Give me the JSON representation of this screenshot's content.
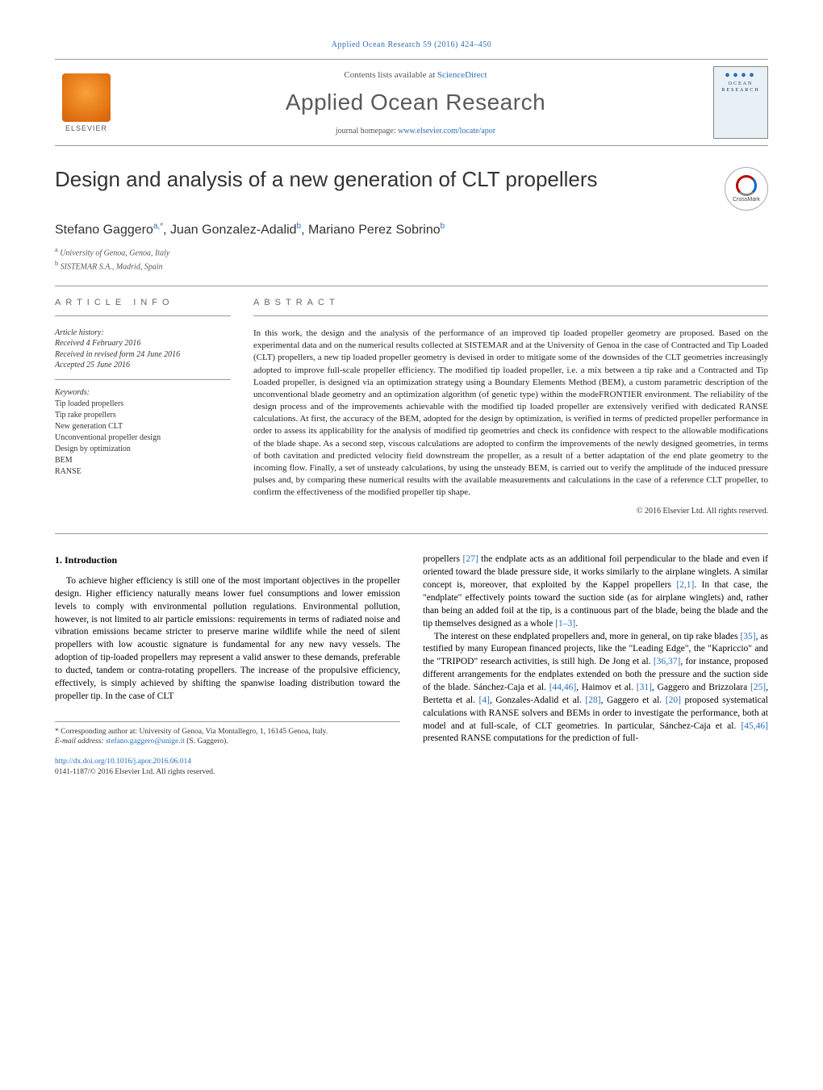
{
  "journal_ref": "Applied Ocean Research 59 (2016) 424–450",
  "masthead": {
    "contents_prefix": "Contents lists available at ",
    "contents_link": "ScienceDirect",
    "journal_title": "Applied Ocean Research",
    "homepage_prefix": "journal homepage: ",
    "homepage_link": "www.elsevier.com/locate/apor",
    "publisher": "ELSEVIER",
    "cover_word1": "OCEAN",
    "cover_word2": "RESEARCH"
  },
  "article": {
    "title": "Design and analysis of a new generation of CLT propellers",
    "crossmark": "CrossMark",
    "authors_html": "Stefano Gaggero<sup>a,*</sup>, Juan Gonzalez-Adalid<sup>b</sup>, Mariano Perez Sobrino<sup>b</sup>",
    "affiliations": [
      "a University of Genoa, Genoa, Italy",
      "b SISTEMAR S.A., Madrid, Spain"
    ]
  },
  "info": {
    "label": "ARTICLE INFO",
    "history_label": "Article history:",
    "received": "Received 4 February 2016",
    "revised": "Received in revised form 24 June 2016",
    "accepted": "Accepted 25 June 2016",
    "keywords_label": "Keywords:",
    "keywords": [
      "Tip loaded propellers",
      "Tip rake propellers",
      "New generation CLT",
      "Unconventional propeller design",
      "Design by optimization",
      "BEM",
      "RANSE"
    ]
  },
  "abstract": {
    "label": "ABSTRACT",
    "text": "In this work, the design and the analysis of the performance of an improved tip loaded propeller geometry are proposed. Based on the experimental data and on the numerical results collected at SISTEMAR and at the University of Genoa in the case of Contracted and Tip Loaded (CLT) propellers, a new tip loaded propeller geometry is devised in order to mitigate some of the downsides of the CLT geometries increasingly adopted to improve full-scale propeller efficiency. The modified tip loaded propeller, i.e. a mix between a tip rake and a Contracted and Tip Loaded propeller, is designed via an optimization strategy using a Boundary Elements Method (BEM), a custom parametric description of the unconventional blade geometry and an optimization algorithm (of genetic type) within the modeFRONTIER environment. The reliability of the design process and of the improvements achievable with the modified tip loaded propeller are extensively verified with dedicated RANSE calculations. At first, the accuracy of the BEM, adopted for the design by optimization, is verified in terms of predicted propeller performance in order to assess its applicability for the analysis of modified tip geometries and check its confidence with respect to the allowable modifications of the blade shape. As a second step, viscous calculations are adopted to confirm the improvements of the newly designed geometries, in terms of both cavitation and predicted velocity field downstream the propeller, as a result of a better adaptation of the end plate geometry to the incoming flow. Finally, a set of unsteady calculations, by using the unsteady BEM, is carried out to verify the amplitude of the induced pressure pulses and, by comparing these numerical results with the available measurements and calculations in the case of a reference CLT propeller, to confirm the effectiveness of the modified propeller tip shape.",
    "copyright": "© 2016 Elsevier Ltd. All rights reserved."
  },
  "body": {
    "heading": "1. Introduction",
    "col1": "To achieve higher efficiency is still one of the most important objectives in the propeller design. Higher efficiency naturally means lower fuel consumptions and lower emission levels to comply with environmental pollution regulations. Environmental pollution, however, is not limited to air particle emissions: requirements in terms of radiated noise and vibration emissions became stricter to preserve marine wildlife while the need of silent propellers with low acoustic signature is fundamental for any new navy vessels. The adoption of tip-loaded propellers may represent a valid answer to these demands, preferable to ducted, tandem or contra-rotating propellers. The increase of the propulsive efficiency, effectively, is simply achieved by shifting the spanwise loading distribution toward the propeller tip. In the case of CLT",
    "col2_p1": "propellers [27] the endplate acts as an additional foil perpendicular to the blade and even if oriented toward the blade pressure side, it works similarly to the airplane winglets. A similar concept is, moreover, that exploited by the Kappel propellers [2,1]. In that case, the \"endplate\" effectively points toward the suction side (as for airplane winglets) and, rather than being an added foil at the tip, is a continuous part of the blade, being the blade and the tip themselves designed as a whole [1–3].",
    "col2_p2": "The interest on these endplated propellers and, more in general, on tip rake blades [35], as testified by many European financed projects, like the \"Leading Edge\", the \"Kapriccio\" and the \"TRIPOD\" research activities, is still high. De Jong et al. [36,37], for instance, proposed different arrangements for the endplates extended on both the pressure and the suction side of the blade. Sánchez-Caja et al. [44,46], Haimov et al. [31], Gaggero and Brizzolara [25], Bertetta et al. [4], Gonzales-Adalid et al. [28], Gaggero et al. [20] proposed systematical calculations with RANSE solvers and BEMs in order to investigate the performance, both at model and at full-scale, of CLT geometries. In particular, Sánchez-Caja et al. [45,46] presented RANSE computations for the prediction of full-"
  },
  "footnotes": {
    "corr": "* Corresponding author at: University of Genoa, Via Montallegro, 1, 16145 Genoa, Italy.",
    "email_label": "E-mail address: ",
    "email": "stefano.gaggero@unige.it",
    "email_who": " (S. Gaggero)."
  },
  "footer": {
    "doi": "http://dx.doi.org/10.1016/j.apor.2016.06.014",
    "issn": "0141-1187/© 2016 Elsevier Ltd. All rights reserved."
  },
  "colors": {
    "link": "#2a6ebb",
    "text": "#222222",
    "rule": "#999999"
  }
}
